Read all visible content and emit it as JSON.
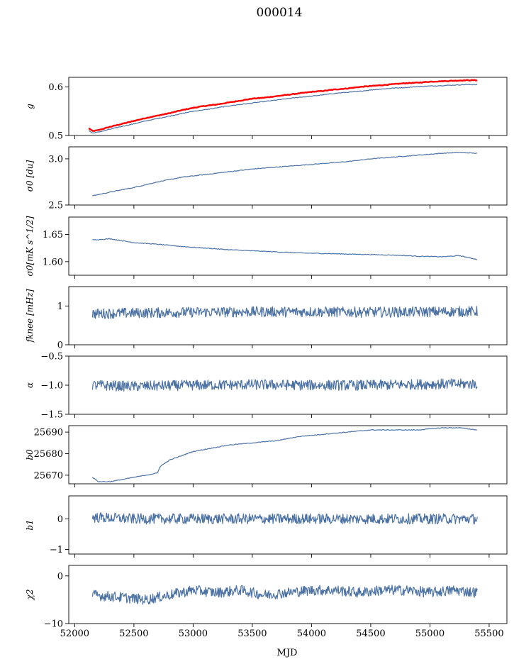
{
  "title": "000014",
  "chart_data": {
    "type": "line",
    "title": "000014",
    "xlabel": "MJD",
    "xlim": [
      51950,
      55650
    ],
    "xticks": [
      52000,
      52500,
      53000,
      53500,
      54000,
      54500,
      55000,
      55500
    ],
    "panels": [
      {
        "ylabel": "g",
        "ylim": [
          0.5,
          0.62
        ],
        "yticks": [
          0.5,
          0.6
        ],
        "yticklabels": [
          "0.5",
          "0.6"
        ],
        "series": [
          {
            "color": "#ff0000",
            "x": [
              52120,
              52150,
              52200,
              52300,
              52400,
              52500,
              52600,
              52700,
              52800,
              52900,
              53000,
              53100,
              53200,
              53300,
              53400,
              53500,
              53600,
              53700,
              53800,
              53900,
              54000,
              54100,
              54200,
              54300,
              54400,
              54500,
              54600,
              54700,
              54800,
              54900,
              55000,
              55100,
              55200,
              55300,
              55400
            ],
            "y": [
              0.515,
              0.509,
              0.511,
              0.518,
              0.524,
              0.53,
              0.536,
              0.541,
              0.546,
              0.552,
              0.557,
              0.561,
              0.564,
              0.568,
              0.572,
              0.576,
              0.578,
              0.581,
              0.584,
              0.587,
              0.59,
              0.592,
              0.595,
              0.597,
              0.6,
              0.602,
              0.604,
              0.606,
              0.608,
              0.609,
              0.611,
              0.612,
              0.613,
              0.614,
              0.614
            ]
          },
          {
            "color": "#4c72a4",
            "x": [
              52120,
              52150,
              52200,
              52300,
              52400,
              52500,
              52600,
              52700,
              52800,
              52900,
              53000,
              53100,
              53200,
              53300,
              53400,
              53500,
              53600,
              53700,
              53800,
              53900,
              54000,
              54100,
              54200,
              54300,
              54400,
              54500,
              54600,
              54700,
              54800,
              54900,
              55000,
              55100,
              55200,
              55300,
              55400
            ],
            "y": [
              0.51,
              0.505,
              0.507,
              0.513,
              0.519,
              0.524,
              0.53,
              0.535,
              0.54,
              0.545,
              0.55,
              0.553,
              0.557,
              0.561,
              0.564,
              0.567,
              0.57,
              0.573,
              0.576,
              0.579,
              0.581,
              0.584,
              0.587,
              0.589,
              0.591,
              0.594,
              0.596,
              0.598,
              0.599,
              0.601,
              0.602,
              0.603,
              0.604,
              0.605,
              0.605
            ]
          }
        ]
      },
      {
        "ylabel": "σ0 [du]",
        "ylim": [
          2.5,
          3.13
        ],
        "yticks": [
          2.5,
          3.0
        ],
        "yticklabels": [
          "2.5",
          "3.0"
        ],
        "series": [
          {
            "color": "#4c72a4",
            "x": [
              52150,
              52300,
              52500,
              52700,
              52900,
              53100,
              53300,
              53500,
              53700,
              53900,
              54100,
              54300,
              54500,
              54700,
              54900,
              55100,
              55250,
              55400
            ],
            "y": [
              2.6,
              2.64,
              2.69,
              2.75,
              2.8,
              2.83,
              2.86,
              2.89,
              2.91,
              2.93,
              2.95,
              2.97,
              3.0,
              3.02,
              3.04,
              3.06,
              3.07,
              3.06
            ]
          }
        ]
      },
      {
        "ylabel": "σ0[mK s^1/2]",
        "ylim": [
          1.575,
          1.682
        ],
        "yticks": [
          1.6,
          1.65
        ],
        "yticklabels": [
          "1.60",
          "1.65"
        ],
        "series": [
          {
            "color": "#4c72a4",
            "x": [
              52150,
              52300,
              52500,
              52700,
              52900,
              53100,
              53300,
              53500,
              53700,
              53900,
              54100,
              54300,
              54500,
              54700,
              54900,
              55100,
              55250,
              55400
            ],
            "y": [
              1.64,
              1.642,
              1.635,
              1.632,
              1.628,
              1.625,
              1.622,
              1.62,
              1.618,
              1.616,
              1.615,
              1.614,
              1.613,
              1.612,
              1.61,
              1.609,
              1.611,
              1.604
            ]
          }
        ]
      },
      {
        "ylabel": "fknee [mHz]",
        "ylim": [
          0,
          1.5
        ],
        "yticks": [
          0,
          1
        ],
        "yticklabels": [
          "0",
          "1"
        ],
        "series": [
          {
            "color": "#4c72a4",
            "noise": true,
            "x": [
              52150,
              52500,
              53000,
              53500,
              54000,
              54500,
              55000,
              55400
            ],
            "y": [
              0.8,
              0.82,
              0.84,
              0.85,
              0.85,
              0.84,
              0.85,
              0.86
            ]
          }
        ]
      },
      {
        "ylabel": "α",
        "ylim": [
          -1.5,
          -0.5
        ],
        "yticks": [
          -1.5,
          -1.0,
          -0.5
        ],
        "yticklabels": [
          "−1.5",
          "−1.0",
          "−0.5"
        ],
        "series": [
          {
            "color": "#4c72a4",
            "noise": true,
            "x": [
              52150,
              52500,
              53000,
              53500,
              54000,
              54500,
              55000,
              55400
            ],
            "y": [
              -1.0,
              -1.02,
              -1.0,
              -0.99,
              -1.0,
              -1.0,
              -0.98,
              -0.98
            ]
          }
        ]
      },
      {
        "ylabel": "b0",
        "ylim": [
          25666,
          25693
        ],
        "yticks": [
          25670,
          25680,
          25690
        ],
        "yticklabels": [
          "25670",
          "25680",
          "25690"
        ],
        "series": [
          {
            "color": "#4c72a4",
            "x": [
              52150,
              52200,
              52300,
              52400,
              52500,
              52600,
              52700,
              52720,
              52800,
              52900,
              53000,
              53100,
              53200,
              53300,
              53500,
              53700,
              53900,
              54100,
              54300,
              54500,
              54700,
              54900,
              55100,
              55250,
              55400
            ],
            "y": [
              25669,
              25667,
              25667,
              25668,
              25669,
              25670,
              25671,
              25674,
              25677,
              25679,
              25681,
              25682,
              25683,
              25684,
              25685,
              25686,
              25688,
              25689,
              25690,
              25691,
              25691,
              25691,
              25692,
              25692,
              25691
            ]
          }
        ]
      },
      {
        "ylabel": "b1",
        "ylim": [
          -1.15,
          0.75
        ],
        "yticks": [
          -1,
          0
        ],
        "yticklabels": [
          "−1",
          "0"
        ],
        "series": [
          {
            "color": "#4c72a4",
            "noise": true,
            "x": [
              52150,
              52500,
              53000,
              53500,
              54000,
              54500,
              55000,
              55400
            ],
            "y": [
              0.05,
              0.0,
              0.0,
              0.0,
              0.0,
              0.0,
              0.0,
              0.0
            ]
          }
        ]
      },
      {
        "ylabel": "χ2",
        "ylim": [
          -10,
          2.2
        ],
        "yticks": [
          -10,
          0
        ],
        "yticklabels": [
          "−10",
          "0"
        ],
        "series": [
          {
            "color": "#4c72a4",
            "noise": true,
            "x": [
              52150,
              52400,
              52600,
              52800,
              53000,
              53200,
              53400,
              53600,
              53800,
              54000,
              54200,
              54400,
              54600,
              54800,
              55000,
              55200,
              55400
            ],
            "y": [
              -4.0,
              -4.5,
              -5.0,
              -4.0,
              -3.0,
              -3.5,
              -3.0,
              -4.0,
              -3.5,
              -3.0,
              -3.0,
              -3.5,
              -3.0,
              -3.0,
              -3.5,
              -3.0,
              -3.5
            ]
          }
        ]
      }
    ]
  }
}
